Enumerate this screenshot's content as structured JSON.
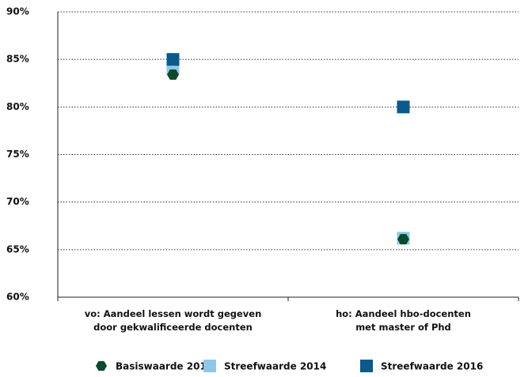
{
  "chart_data": {
    "type": "dot",
    "categories": [
      "vo: Aandeel lessen wordt gegeven\ndoor gekwalificeerde docenten",
      "ho: Aandeel hbo-docenten\nmet master of Phd"
    ],
    "series": [
      {
        "name": "Streefwaarde 2014",
        "color": "#8ec8e8",
        "marker": "square",
        "values": [
          84,
          66.2
        ]
      },
      {
        "name": "Streefwaarde 2016",
        "color": "#0a5a8c",
        "marker": "square",
        "values": [
          85,
          80
        ]
      },
      {
        "name": "Basiswaarde 2011",
        "color": "#0b4a2b",
        "marker": "hexagon",
        "values": [
          83.4,
          66.1
        ]
      }
    ],
    "legend_order": [
      2,
      0,
      1
    ],
    "ylim": [
      60,
      90
    ],
    "yticks": [
      {
        "value": 60,
        "label": "60%"
      },
      {
        "value": 65,
        "label": "65%"
      },
      {
        "value": 70,
        "label": "70%"
      },
      {
        "value": 75,
        "label": "75%"
      },
      {
        "value": 80,
        "label": "80%"
      },
      {
        "value": 85,
        "label": "85%"
      },
      {
        "value": 90,
        "label": "90%"
      }
    ],
    "grid": true
  }
}
